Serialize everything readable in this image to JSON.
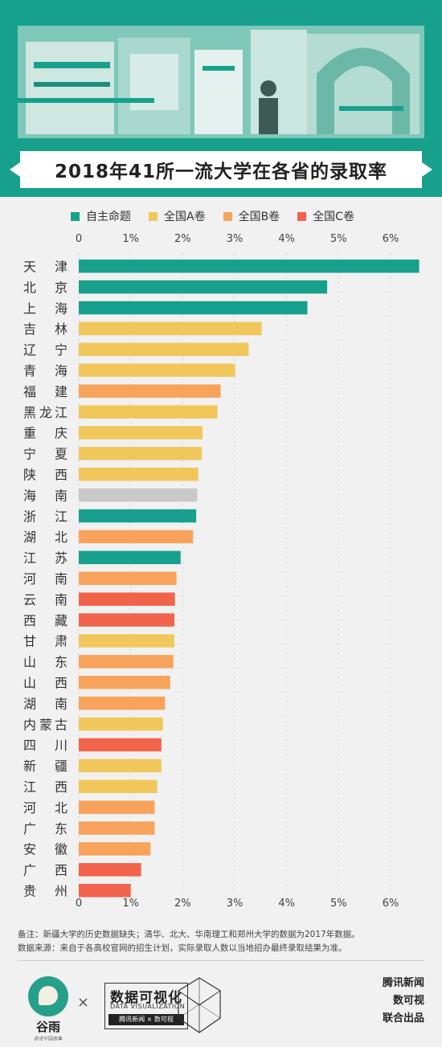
{
  "title": "2018年41所一流大学在各省的录取率",
  "legend": [
    {
      "name": "自主命题",
      "color": "#17a18c"
    },
    {
      "name": "全国A卷",
      "color": "#f1c75c"
    },
    {
      "name": "全国B卷",
      "color": "#f8a35b"
    },
    {
      "name": "全国C卷",
      "color": "#f2634b"
    }
  ],
  "no_data_color": "#c9c9c9",
  "chart_data": {
    "type": "bar",
    "orientation": "horizontal",
    "title": "2018年41所一流大学在各省的录取率",
    "xlim": [
      0,
      6.5
    ],
    "ticks": [
      "0",
      "1%",
      "2%",
      "3%",
      "4%",
      "5%",
      "6%"
    ],
    "tick_values": [
      0,
      1,
      2,
      3,
      4,
      5,
      6
    ],
    "grid": true,
    "unit": "%",
    "categories": [
      "天津",
      "北京",
      "上海",
      "吉林",
      "辽宁",
      "青海",
      "福建",
      "黑龙江",
      "重庆",
      "宁夏",
      "陕西",
      "海南",
      "浙江",
      "湖北",
      "江苏",
      "河南",
      "云南",
      "西藏",
      "甘肃",
      "山东",
      "山西",
      "湖南",
      "内蒙古",
      "四川",
      "新疆",
      "江西",
      "河北",
      "广东",
      "安徽",
      "广西",
      "贵州"
    ],
    "label_chars": [
      [
        "天",
        "津"
      ],
      [
        "北",
        "京"
      ],
      [
        "上",
        "海"
      ],
      [
        "吉",
        "林"
      ],
      [
        "辽",
        "宁"
      ],
      [
        "青",
        "海"
      ],
      [
        "福",
        "建"
      ],
      [
        "黑",
        "龙",
        "江"
      ],
      [
        "重",
        "庆"
      ],
      [
        "宁",
        "夏"
      ],
      [
        "陕",
        "西"
      ],
      [
        "海",
        "南"
      ],
      [
        "浙",
        "江"
      ],
      [
        "湖",
        "北"
      ],
      [
        "江",
        "苏"
      ],
      [
        "河",
        "南"
      ],
      [
        "云",
        "南"
      ],
      [
        "西",
        "藏"
      ],
      [
        "甘",
        "肃"
      ],
      [
        "山",
        "东"
      ],
      [
        "山",
        "西"
      ],
      [
        "湖",
        "南"
      ],
      [
        "内",
        "蒙",
        "古"
      ],
      [
        "四",
        "川"
      ],
      [
        "新",
        "疆"
      ],
      [
        "江",
        "西"
      ],
      [
        "河",
        "北"
      ],
      [
        "广",
        "东"
      ],
      [
        "安",
        "徽"
      ],
      [
        "广",
        "西"
      ],
      [
        "贵",
        "州"
      ]
    ],
    "values": [
      6.55,
      4.78,
      4.4,
      3.52,
      3.27,
      3.01,
      2.73,
      2.67,
      2.38,
      2.37,
      2.3,
      2.28,
      2.26,
      2.2,
      1.96,
      1.88,
      1.85,
      1.84,
      1.84,
      1.82,
      1.76,
      1.66,
      1.62,
      1.59,
      1.59,
      1.51,
      1.46,
      1.46,
      1.38,
      1.2,
      1.0
    ],
    "groups": [
      "自主命题",
      "自主命题",
      "自主命题",
      "全国A卷",
      "全国A卷",
      "全国A卷",
      "全国B卷",
      "全国A卷",
      "全国A卷",
      "全国A卷",
      "全国A卷",
      "",
      "自主命题",
      "全国B卷",
      "自主命题",
      "全国B卷",
      "全国C卷",
      "全国C卷",
      "全国A卷",
      "全国B卷",
      "全国B卷",
      "全国B卷",
      "全国A卷",
      "全国C卷",
      "全国A卷",
      "全国A卷",
      "全国B卷",
      "全国B卷",
      "全国B卷",
      "全国C卷",
      "全国C卷"
    ]
  },
  "notes": [
    "备注：新疆大学的历史数据缺失；清华、北大、华南理工和郑州大学的数据为2017年数据。",
    "数据来源：来自于各高校官网的招生计划，实际录取人数以当地招办最终录取结果为准。"
  ],
  "footer": {
    "guyu_name": "谷雨",
    "guyu_sub": "讲述中国故事",
    "times": "×",
    "dv_title": "数据可视化",
    "dv_en": "DATA VISUALIZATION",
    "dv_tag": "腾讯新闻 × 数可视",
    "credits": [
      "腾讯新闻",
      "数可视",
      "联合出品"
    ]
  }
}
